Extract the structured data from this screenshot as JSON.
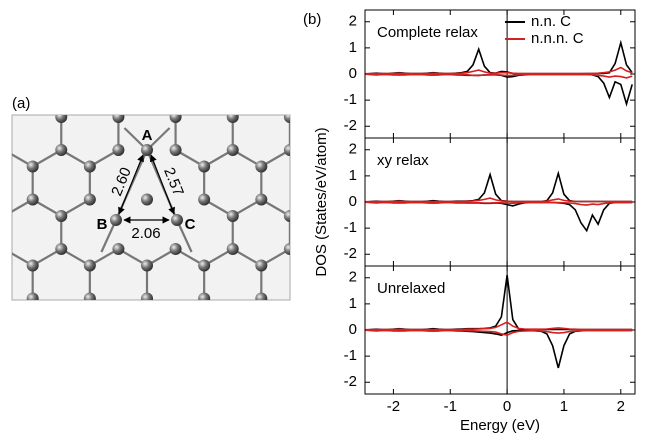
{
  "diagram": {
    "panel_label": "(a)",
    "atoms": [
      "A",
      "B",
      "C"
    ],
    "distances": [
      "2.60",
      "2.57",
      "2.06"
    ]
  },
  "chart_data": [
    {
      "type": "line",
      "panel_label": "(b)",
      "annotation": "Complete relax",
      "x": [
        -2.5,
        -2.4,
        -2.3,
        -2.2,
        -2.1,
        -2.0,
        -1.9,
        -1.8,
        -1.7,
        -1.6,
        -1.5,
        -1.4,
        -1.3,
        -1.2,
        -1.1,
        -1.0,
        -0.9,
        -0.8,
        -0.7,
        -0.6,
        -0.5,
        -0.4,
        -0.3,
        -0.2,
        -0.1,
        0,
        0.1,
        0.2,
        0.3,
        0.4,
        0.5,
        0.6,
        0.7,
        0.8,
        0.9,
        1.0,
        1.1,
        1.2,
        1.3,
        1.4,
        1.5,
        1.6,
        1.7,
        1.8,
        1.9,
        2.0,
        2.1,
        2.2
      ],
      "xlim": [
        -2.5,
        2.25
      ],
      "ylim": [
        -2.45,
        2.45
      ],
      "yticks": [
        -2,
        -1,
        0,
        1,
        2
      ],
      "legend": "upper right",
      "series": [
        {
          "name": "n.n. C",
          "color": "#000000",
          "values": [
            0,
            0.02,
            0.03,
            0.02,
            0.01,
            0.03,
            0.05,
            0.03,
            0.02,
            0.02,
            0.02,
            0.03,
            0.05,
            0.03,
            0.02,
            0.02,
            0.03,
            0.05,
            0.1,
            0.35,
            0.95,
            0.3,
            0.05,
            0.03,
            0.1,
            0.08,
            0.02,
            0.01,
            0.01,
            0.01,
            0.01,
            0.01,
            0.01,
            0.01,
            0.01,
            0.01,
            0.01,
            0.01,
            0.01,
            0.02,
            0.02,
            0.02,
            0.02,
            0.05,
            0.4,
            1.2,
            0.35,
            0.05
          ],
          "values_down": [
            0,
            -0.02,
            -0.03,
            -0.02,
            -0.02,
            -0.03,
            -0.04,
            -0.03,
            -0.02,
            -0.02,
            -0.02,
            -0.03,
            -0.04,
            -0.03,
            -0.02,
            -0.02,
            -0.03,
            -0.04,
            -0.05,
            -0.05,
            -0.05,
            -0.04,
            -0.03,
            -0.03,
            -0.05,
            -0.12,
            -0.1,
            -0.05,
            -0.03,
            -0.02,
            -0.02,
            -0.02,
            -0.02,
            -0.02,
            -0.02,
            -0.02,
            -0.02,
            -0.02,
            -0.02,
            -0.02,
            -0.03,
            -0.1,
            -0.35,
            -0.9,
            -0.3,
            -0.4,
            -1.15,
            -0.4
          ]
        },
        {
          "name": "n.n.n. C",
          "color": "#d42020",
          "values": [
            0.01,
            0.01,
            0.01,
            0.02,
            0.02,
            0.02,
            0.03,
            0.02,
            0.02,
            0.02,
            0.02,
            0.02,
            0.03,
            0.02,
            0.02,
            0.02,
            0.02,
            0.03,
            0.05,
            0.1,
            0.15,
            0.08,
            0.03,
            0.03,
            0.05,
            0.05,
            0.03,
            0.02,
            0.02,
            0.02,
            0.02,
            0.02,
            0.02,
            0.02,
            0.02,
            0.02,
            0.02,
            0.02,
            0.02,
            0.02,
            0.02,
            0.03,
            0.05,
            0.08,
            0.15,
            0.25,
            0.12,
            0.05
          ],
          "values_down": [
            -0.01,
            -0.01,
            -0.02,
            -0.02,
            -0.02,
            -0.02,
            -0.03,
            -0.02,
            -0.02,
            -0.02,
            -0.02,
            -0.02,
            -0.02,
            -0.02,
            -0.02,
            -0.02,
            -0.02,
            -0.02,
            -0.03,
            -0.05,
            -0.06,
            -0.04,
            -0.03,
            -0.03,
            -0.04,
            -0.06,
            -0.05,
            -0.03,
            -0.02,
            -0.02,
            -0.02,
            -0.02,
            -0.02,
            -0.02,
            -0.02,
            -0.02,
            -0.02,
            -0.02,
            -0.02,
            -0.02,
            -0.03,
            -0.05,
            -0.08,
            -0.12,
            -0.08,
            -0.1,
            -0.15,
            -0.08
          ]
        }
      ]
    },
    {
      "type": "line",
      "annotation": "xy relax",
      "ylabel": "DOS (States/eV/atom)",
      "x": [
        -2.5,
        -2.4,
        -2.3,
        -2.2,
        -2.1,
        -2.0,
        -1.9,
        -1.8,
        -1.7,
        -1.6,
        -1.5,
        -1.4,
        -1.3,
        -1.2,
        -1.1,
        -1.0,
        -0.9,
        -0.8,
        -0.7,
        -0.6,
        -0.5,
        -0.4,
        -0.3,
        -0.2,
        -0.1,
        0,
        0.1,
        0.2,
        0.3,
        0.4,
        0.5,
        0.6,
        0.7,
        0.8,
        0.9,
        1.0,
        1.1,
        1.2,
        1.3,
        1.4,
        1.5,
        1.6,
        1.7,
        1.8,
        1.9,
        2.0,
        2.1,
        2.2
      ],
      "xlim": [
        -2.5,
        2.25
      ],
      "ylim": [
        -2.45,
        2.45
      ],
      "yticks": [
        -2,
        -1,
        0,
        1,
        2
      ],
      "series": [
        {
          "color": "#000000",
          "values": [
            0,
            0.02,
            0.03,
            0.02,
            0.02,
            0.03,
            0.05,
            0.03,
            0.02,
            0.02,
            0.02,
            0.03,
            0.05,
            0.03,
            0.02,
            0.02,
            0.03,
            0.03,
            0.04,
            0.05,
            0.1,
            0.35,
            1.05,
            0.3,
            0.05,
            0.03,
            0.02,
            0.02,
            0.02,
            0.02,
            0.02,
            0.02,
            0.05,
            0.35,
            1.1,
            0.3,
            0.05,
            0.02,
            0.02,
            0.02,
            0.02,
            0.02,
            0.02,
            0.02,
            0.02,
            0.02,
            0.02,
            0.02
          ],
          "values_down": [
            0,
            -0.02,
            -0.03,
            -0.02,
            -0.02,
            -0.03,
            -0.04,
            -0.03,
            -0.02,
            -0.02,
            -0.02,
            -0.03,
            -0.04,
            -0.03,
            -0.02,
            -0.02,
            -0.03,
            -0.03,
            -0.04,
            -0.04,
            -0.04,
            -0.05,
            -0.05,
            -0.04,
            -0.05,
            -0.1,
            -0.15,
            -0.08,
            -0.03,
            -0.02,
            -0.02,
            -0.02,
            -0.02,
            -0.02,
            -0.03,
            -0.05,
            -0.1,
            -0.3,
            -0.8,
            -1.1,
            -0.5,
            -0.85,
            -0.3,
            -0.05,
            -0.02,
            -0.02,
            -0.02,
            -0.02
          ]
        },
        {
          "color": "#d42020",
          "values": [
            0.01,
            0.01,
            0.02,
            0.02,
            0.02,
            0.02,
            0.03,
            0.02,
            0.02,
            0.02,
            0.02,
            0.02,
            0.02,
            0.02,
            0.02,
            0.02,
            0.02,
            0.02,
            0.03,
            0.04,
            0.06,
            0.1,
            0.15,
            0.08,
            0.04,
            0.03,
            0.02,
            0.02,
            0.02,
            0.02,
            0.02,
            0.02,
            0.03,
            0.08,
            0.12,
            0.06,
            0.03,
            0.02,
            0.02,
            0.02,
            0.02,
            0.02,
            0.02,
            0.02,
            0.02,
            0.02,
            0.02,
            0.02
          ],
          "values_down": [
            -0.01,
            -0.01,
            -0.02,
            -0.02,
            -0.02,
            -0.02,
            -0.03,
            -0.02,
            -0.02,
            -0.02,
            -0.02,
            -0.02,
            -0.02,
            -0.02,
            -0.02,
            -0.02,
            -0.02,
            -0.02,
            -0.03,
            -0.03,
            -0.03,
            -0.04,
            -0.04,
            -0.03,
            -0.03,
            -0.04,
            -0.05,
            -0.03,
            -0.02,
            -0.02,
            -0.02,
            -0.02,
            -0.02,
            -0.02,
            -0.02,
            -0.03,
            -0.04,
            -0.06,
            -0.1,
            -0.12,
            -0.08,
            -0.1,
            -0.06,
            -0.03,
            -0.02,
            -0.02,
            -0.02,
            -0.02
          ]
        }
      ]
    },
    {
      "type": "line",
      "annotation": "Unrelaxed",
      "xlabel": "Energy (eV)",
      "x": [
        -2.5,
        -2.4,
        -2.3,
        -2.2,
        -2.1,
        -2.0,
        -1.9,
        -1.8,
        -1.7,
        -1.6,
        -1.5,
        -1.4,
        -1.3,
        -1.2,
        -1.1,
        -1.0,
        -0.9,
        -0.8,
        -0.7,
        -0.6,
        -0.5,
        -0.4,
        -0.3,
        -0.2,
        -0.1,
        0,
        0.1,
        0.2,
        0.3,
        0.4,
        0.5,
        0.6,
        0.7,
        0.8,
        0.9,
        1.0,
        1.1,
        1.2,
        1.3,
        1.4,
        1.5,
        1.6,
        1.7,
        1.8,
        1.9,
        2.0,
        2.1,
        2.2
      ],
      "xlim": [
        -2.5,
        2.25
      ],
      "xticks": [
        -2,
        -1,
        0,
        1,
        2
      ],
      "ylim": [
        -2.45,
        2.45
      ],
      "yticks": [
        -2,
        -1,
        0,
        1,
        2
      ],
      "series": [
        {
          "color": "#000000",
          "values": [
            0,
            0.02,
            0.03,
            0.02,
            0.02,
            0.03,
            0.05,
            0.03,
            0.02,
            0.02,
            0.02,
            0.03,
            0.05,
            0.03,
            0.02,
            0.02,
            0.03,
            0.04,
            0.05,
            0.05,
            0.05,
            0.06,
            0.08,
            0.15,
            0.5,
            2.1,
            0.4,
            0.05,
            0.02,
            0.02,
            0.02,
            0.02,
            0.02,
            0.02,
            0.02,
            0.02,
            0.02,
            0.02,
            0.02,
            0.02,
            0.02,
            0.02,
            0.02,
            0.02,
            0.02,
            0.02,
            0.02,
            0.02
          ],
          "values_down": [
            0,
            -0.02,
            -0.03,
            -0.02,
            -0.02,
            -0.03,
            -0.04,
            -0.03,
            -0.02,
            -0.02,
            -0.02,
            -0.03,
            -0.04,
            -0.03,
            -0.02,
            -0.02,
            -0.03,
            -0.04,
            -0.05,
            -0.06,
            -0.08,
            -0.1,
            -0.12,
            -0.15,
            -0.2,
            -0.1,
            -0.03,
            -0.02,
            -0.02,
            -0.02,
            -0.03,
            -0.05,
            -0.15,
            -0.6,
            -1.45,
            -0.6,
            -0.15,
            -0.05,
            -0.03,
            -0.02,
            -0.02,
            -0.02,
            -0.02,
            -0.02,
            -0.02,
            -0.02,
            -0.02,
            -0.02
          ]
        },
        {
          "color": "#d42020",
          "values": [
            0.01,
            0.01,
            0.02,
            0.02,
            0.02,
            0.02,
            0.03,
            0.02,
            0.02,
            0.02,
            0.02,
            0.02,
            0.02,
            0.02,
            0.02,
            0.02,
            0.02,
            0.02,
            0.03,
            0.03,
            0.04,
            0.05,
            0.06,
            0.1,
            0.2,
            0.3,
            0.15,
            0.06,
            0.04,
            0.03,
            0.03,
            0.03,
            0.04,
            0.06,
            0.08,
            0.06,
            0.04,
            0.03,
            0.02,
            0.02,
            0.02,
            0.02,
            0.02,
            0.02,
            0.02,
            0.02,
            0.02,
            0.02
          ],
          "values_down": [
            -0.01,
            -0.01,
            -0.02,
            -0.02,
            -0.02,
            -0.02,
            -0.03,
            -0.02,
            -0.02,
            -0.02,
            -0.02,
            -0.02,
            -0.02,
            -0.02,
            -0.02,
            -0.02,
            -0.02,
            -0.02,
            -0.03,
            -0.03,
            -0.04,
            -0.05,
            -0.06,
            -0.08,
            -0.15,
            -0.2,
            -0.1,
            -0.05,
            -0.04,
            -0.03,
            -0.03,
            -0.04,
            -0.06,
            -0.1,
            -0.12,
            -0.1,
            -0.06,
            -0.04,
            -0.03,
            -0.02,
            -0.02,
            -0.02,
            -0.02,
            -0.02,
            -0.02,
            -0.02,
            -0.02,
            -0.02
          ]
        }
      ]
    }
  ]
}
